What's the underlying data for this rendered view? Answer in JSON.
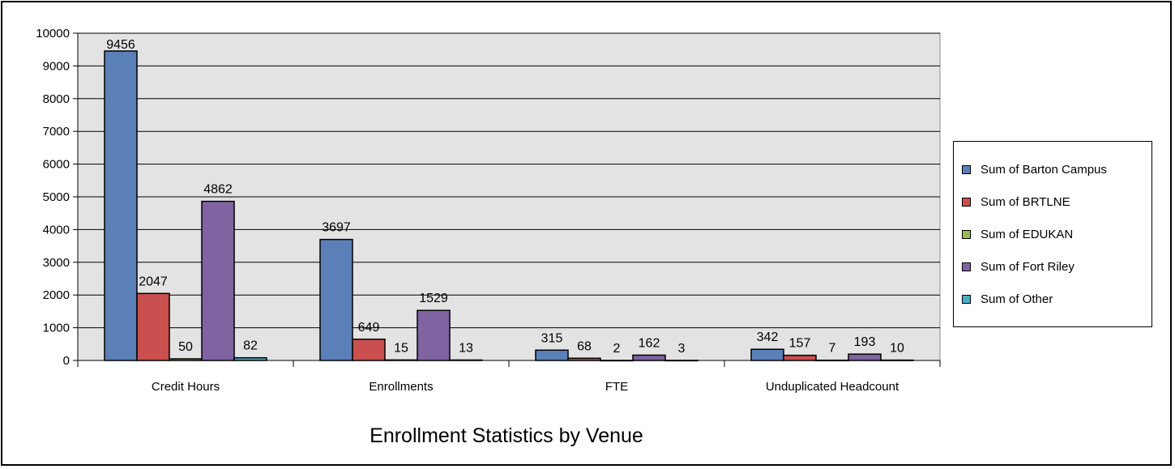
{
  "chart_data": {
    "type": "bar",
    "title": "Enrollment Statistics by Venue",
    "categories": [
      "Credit Hours",
      "Enrollments",
      "FTE",
      "Unduplicated Headcount"
    ],
    "series": [
      {
        "name": "Sum of Barton Campus",
        "color": "#5B7FB7",
        "values": [
          9456,
          3697,
          315,
          342
        ]
      },
      {
        "name": "Sum of BRTLNE",
        "color": "#C9504E",
        "values": [
          2047,
          649,
          68,
          157
        ]
      },
      {
        "name": "Sum of EDUKAN",
        "color": "#9BBB59",
        "values": [
          50,
          15,
          2,
          7
        ]
      },
      {
        "name": "Sum of Fort Riley",
        "color": "#8064A2",
        "values": [
          4862,
          1529,
          162,
          193
        ]
      },
      {
        "name": "Sum of Other",
        "color": "#4BACC6",
        "values": [
          82,
          13,
          3,
          10
        ]
      }
    ],
    "ylim": [
      0,
      10000
    ],
    "yticks": [
      0,
      1000,
      2000,
      3000,
      4000,
      5000,
      6000,
      7000,
      8000,
      9000,
      10000
    ],
    "grid": true,
    "legend_position": "right"
  }
}
